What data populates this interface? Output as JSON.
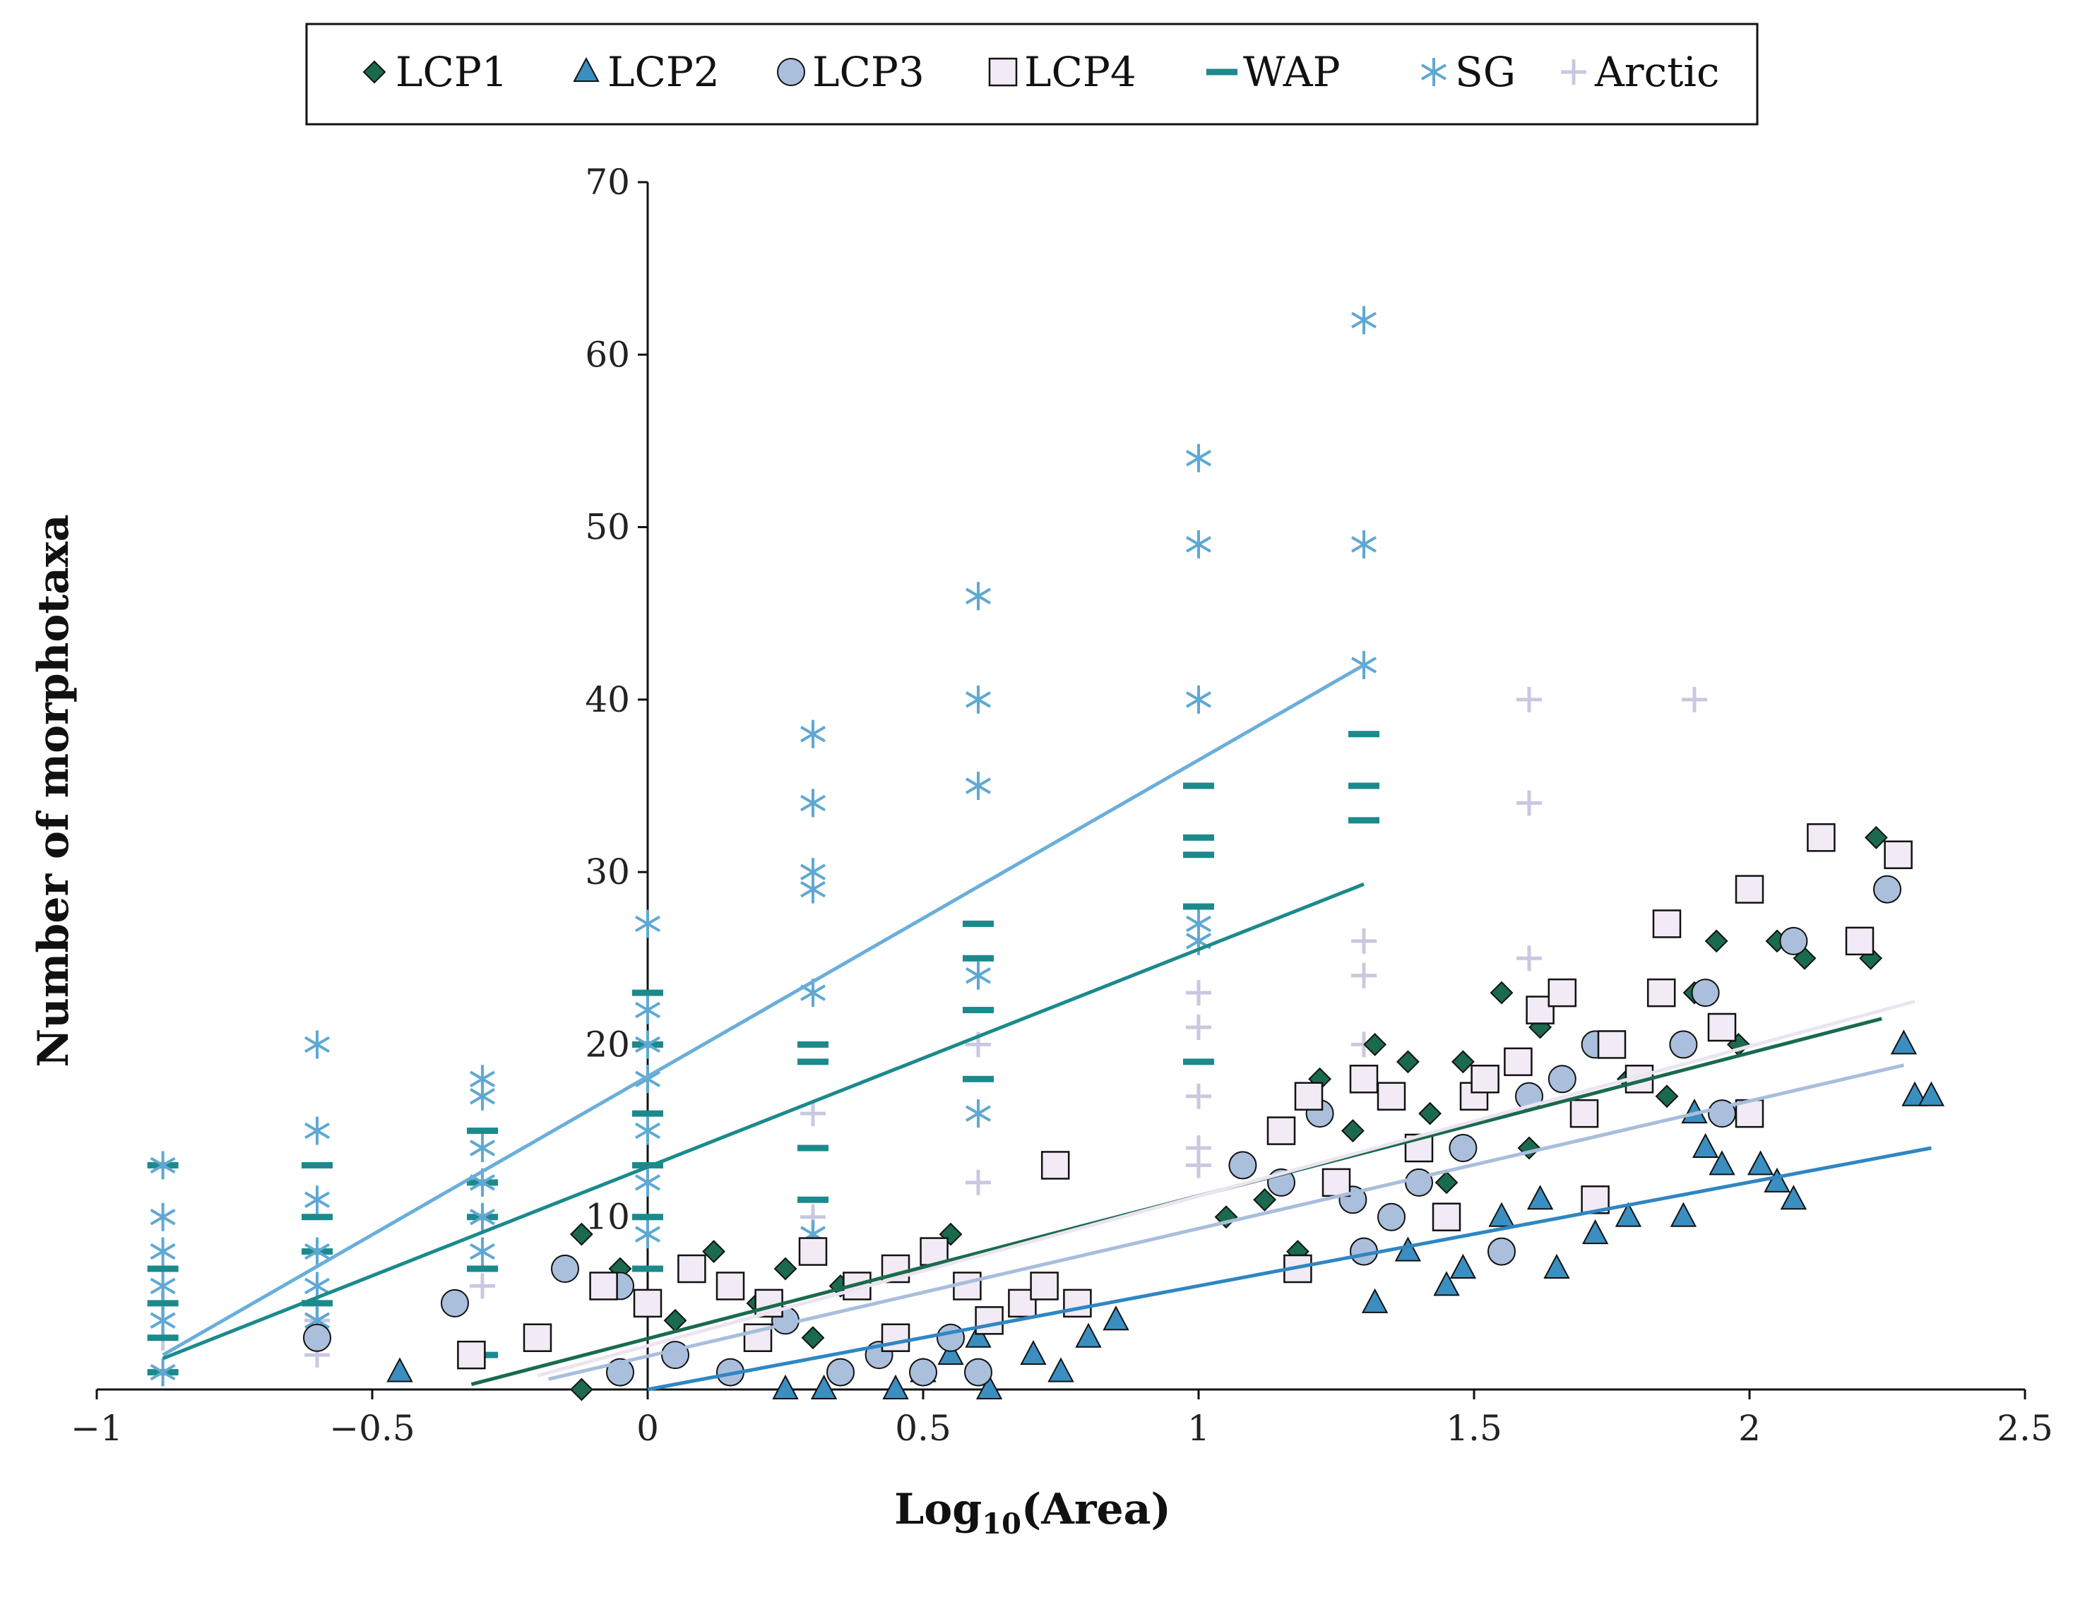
{
  "chart_data": {
    "type": "scatter",
    "title": "",
    "xlabel_main": "Log",
    "xlabel_sub": "10",
    "xlabel_tail": "(Area)",
    "xlabel": "Log10(Area)",
    "ylabel": "Number of morphotaxa",
    "xlim": [
      -1,
      2.5
    ],
    "ylim": [
      0,
      70
    ],
    "x_ticks": [
      -1,
      -0.5,
      0,
      0.5,
      1,
      1.5,
      2,
      2.5
    ],
    "x_tick_labels": [
      "−1",
      "−0.5",
      "0",
      "0.5",
      "1",
      "1.5",
      "2",
      "2.5"
    ],
    "y_ticks": [
      10,
      20,
      30,
      40,
      50,
      60,
      70
    ],
    "y_tick_labels": [
      "10",
      "20",
      "30",
      "40",
      "50",
      "60",
      "70"
    ],
    "grid": false,
    "legend_position": "top",
    "series": [
      {
        "name": "LCP1",
        "marker": "diamond",
        "color": "#1a6b4e",
        "trend": {
          "x": [
            -0.32,
            2.24
          ],
          "y": [
            0.3,
            21.5
          ]
        },
        "points": [
          [
            -0.12,
            9
          ],
          [
            -0.05,
            7
          ],
          [
            0.12,
            8
          ],
          [
            0.25,
            7
          ],
          [
            0.35,
            6
          ],
          [
            0.45,
            7
          ],
          [
            0.55,
            9
          ],
          [
            0.2,
            5
          ],
          [
            -0.12,
            0
          ],
          [
            0.05,
            4
          ],
          [
            0.3,
            3
          ],
          [
            1.05,
            10
          ],
          [
            1.12,
            11
          ],
          [
            1.18,
            8
          ],
          [
            1.22,
            18
          ],
          [
            1.28,
            15
          ],
          [
            1.32,
            20
          ],
          [
            1.38,
            19
          ],
          [
            1.42,
            16
          ],
          [
            1.48,
            19
          ],
          [
            1.55,
            23
          ],
          [
            1.62,
            21
          ],
          [
            1.7,
            16
          ],
          [
            1.78,
            18
          ],
          [
            1.85,
            17
          ],
          [
            1.9,
            23
          ],
          [
            1.94,
            26
          ],
          [
            1.98,
            20
          ],
          [
            2.05,
            26
          ],
          [
            2.1,
            25
          ],
          [
            2.23,
            32
          ],
          [
            2.22,
            25
          ],
          [
            1.45,
            12
          ],
          [
            1.6,
            14
          ]
        ]
      },
      {
        "name": "LCP2",
        "marker": "triangle",
        "color": "#3a8fc0",
        "trend": {
          "x": [
            0.0,
            2.33
          ],
          "y": [
            0.0,
            14.0
          ]
        },
        "points": [
          [
            -0.45,
            1
          ],
          [
            0.25,
            0
          ],
          [
            0.32,
            0
          ],
          [
            0.45,
            0
          ],
          [
            0.5,
            1
          ],
          [
            0.62,
            0
          ],
          [
            0.7,
            2
          ],
          [
            0.75,
            1
          ],
          [
            0.8,
            3
          ],
          [
            0.85,
            4
          ],
          [
            0.6,
            3
          ],
          [
            0.55,
            2
          ],
          [
            1.32,
            5
          ],
          [
            1.38,
            8
          ],
          [
            1.45,
            6
          ],
          [
            1.48,
            7
          ],
          [
            1.55,
            10
          ],
          [
            1.62,
            11
          ],
          [
            1.65,
            7
          ],
          [
            1.72,
            9
          ],
          [
            1.78,
            10
          ],
          [
            1.88,
            10
          ],
          [
            1.92,
            14
          ],
          [
            1.95,
            13
          ],
          [
            2.02,
            13
          ],
          [
            2.05,
            12
          ],
          [
            2.08,
            11
          ],
          [
            2.28,
            20
          ],
          [
            2.3,
            17
          ],
          [
            2.33,
            17
          ],
          [
            1.9,
            16
          ]
        ]
      },
      {
        "name": "LCP3",
        "marker": "circle",
        "color": "#aabfdc",
        "trend": {
          "x": [
            -0.18,
            2.28
          ],
          "y": [
            0.6,
            18.8
          ]
        },
        "points": [
          [
            -0.6,
            3
          ],
          [
            -0.35,
            5
          ],
          [
            -0.15,
            7
          ],
          [
            -0.05,
            6
          ],
          [
            0.05,
            2
          ],
          [
            0.15,
            1
          ],
          [
            0.25,
            4
          ],
          [
            0.35,
            1
          ],
          [
            0.42,
            2
          ],
          [
            0.5,
            1
          ],
          [
            0.55,
            3
          ],
          [
            0.6,
            1
          ],
          [
            -0.05,
            1
          ],
          [
            1.08,
            13
          ],
          [
            1.15,
            12
          ],
          [
            1.22,
            16
          ],
          [
            1.28,
            11
          ],
          [
            1.35,
            10
          ],
          [
            1.4,
            12
          ],
          [
            1.48,
            14
          ],
          [
            1.55,
            8
          ],
          [
            1.6,
            17
          ],
          [
            1.66,
            18
          ],
          [
            1.72,
            20
          ],
          [
            1.8,
            18
          ],
          [
            1.88,
            20
          ],
          [
            1.92,
            23
          ],
          [
            1.95,
            21
          ],
          [
            1.95,
            16
          ],
          [
            2.08,
            26
          ],
          [
            2.25,
            29
          ],
          [
            1.3,
            8
          ]
        ]
      },
      {
        "name": "LCP4",
        "marker": "square",
        "color": "#f2eaf4",
        "trend": {
          "x": [
            -0.2,
            2.3
          ],
          "y": [
            0.8,
            22.5
          ]
        },
        "points": [
          [
            -0.32,
            2
          ],
          [
            -0.2,
            3
          ],
          [
            -0.08,
            6
          ],
          [
            0.0,
            5
          ],
          [
            0.08,
            7
          ],
          [
            0.15,
            6
          ],
          [
            0.22,
            5
          ],
          [
            0.3,
            8
          ],
          [
            0.38,
            6
          ],
          [
            0.45,
            7
          ],
          [
            0.52,
            8
          ],
          [
            0.58,
            6
          ],
          [
            0.62,
            4
          ],
          [
            0.68,
            5
          ],
          [
            0.72,
            6
          ],
          [
            0.78,
            5
          ],
          [
            0.74,
            13
          ],
          [
            0.2,
            3
          ],
          [
            0.45,
            3
          ],
          [
            1.15,
            15
          ],
          [
            1.2,
            17
          ],
          [
            1.25,
            12
          ],
          [
            1.3,
            18
          ],
          [
            1.35,
            17
          ],
          [
            1.4,
            14
          ],
          [
            1.45,
            10
          ],
          [
            1.5,
            17
          ],
          [
            1.52,
            18
          ],
          [
            1.58,
            19
          ],
          [
            1.62,
            22
          ],
          [
            1.66,
            23
          ],
          [
            1.7,
            16
          ],
          [
            1.75,
            20
          ],
          [
            1.8,
            18
          ],
          [
            1.84,
            23
          ],
          [
            1.85,
            27
          ],
          [
            1.95,
            21
          ],
          [
            2.0,
            29
          ],
          [
            2.0,
            16
          ],
          [
            2.13,
            32
          ],
          [
            2.2,
            26
          ],
          [
            2.27,
            31
          ],
          [
            1.18,
            7
          ],
          [
            1.72,
            11
          ]
        ]
      },
      {
        "name": "WAP",
        "marker": "dash",
        "color": "#1c8a8c",
        "trend": {
          "x": [
            -0.88,
            1.3
          ],
          "y": [
            1.8,
            29.3
          ]
        },
        "points": [
          [
            -0.88,
            13
          ],
          [
            -0.88,
            7
          ],
          [
            -0.88,
            5
          ],
          [
            -0.88,
            3
          ],
          [
            -0.88,
            1
          ],
          [
            -0.6,
            13
          ],
          [
            -0.6,
            10
          ],
          [
            -0.6,
            8
          ],
          [
            -0.6,
            5
          ],
          [
            -0.3,
            15
          ],
          [
            -0.3,
            12
          ],
          [
            -0.3,
            10
          ],
          [
            -0.3,
            7
          ],
          [
            -0.3,
            2
          ],
          [
            0,
            23
          ],
          [
            0,
            20
          ],
          [
            0,
            16
          ],
          [
            0,
            13
          ],
          [
            0,
            10
          ],
          [
            0,
            7
          ],
          [
            0.3,
            20
          ],
          [
            0.3,
            19
          ],
          [
            0.3,
            14
          ],
          [
            0.3,
            11
          ],
          [
            0.6,
            27
          ],
          [
            0.6,
            25
          ],
          [
            0.6,
            22
          ],
          [
            0.6,
            18
          ],
          [
            1,
            35
          ],
          [
            1,
            32
          ],
          [
            1,
            31
          ],
          [
            1,
            28
          ],
          [
            1,
            19
          ],
          [
            1.3,
            38
          ],
          [
            1.3,
            35
          ],
          [
            1.3,
            33
          ]
        ]
      },
      {
        "name": "SG",
        "marker": "asterisk",
        "color": "#5fa8d3",
        "trend": {
          "x": [
            -0.88,
            1.3
          ],
          "y": [
            2.0,
            42.0
          ]
        },
        "points": [
          [
            -0.88,
            13
          ],
          [
            -0.88,
            10
          ],
          [
            -0.88,
            8
          ],
          [
            -0.88,
            6
          ],
          [
            -0.88,
            4
          ],
          [
            -0.88,
            1
          ],
          [
            -0.6,
            20
          ],
          [
            -0.6,
            15
          ],
          [
            -0.6,
            11
          ],
          [
            -0.6,
            8
          ],
          [
            -0.6,
            6
          ],
          [
            -0.6,
            4
          ],
          [
            -0.3,
            18
          ],
          [
            -0.3,
            17
          ],
          [
            -0.3,
            14
          ],
          [
            -0.3,
            12
          ],
          [
            -0.3,
            10
          ],
          [
            -0.3,
            8
          ],
          [
            0,
            27
          ],
          [
            0,
            22
          ],
          [
            0,
            20
          ],
          [
            0,
            18
          ],
          [
            0,
            15
          ],
          [
            0,
            12
          ],
          [
            0,
            9
          ],
          [
            0.3,
            38
          ],
          [
            0.3,
            34
          ],
          [
            0.3,
            30
          ],
          [
            0.3,
            29
          ],
          [
            0.3,
            23
          ],
          [
            0.3,
            9
          ],
          [
            0.6,
            46
          ],
          [
            0.6,
            40
          ],
          [
            0.6,
            35
          ],
          [
            0.6,
            24
          ],
          [
            0.6,
            16
          ],
          [
            1,
            54
          ],
          [
            1,
            49
          ],
          [
            1,
            40
          ],
          [
            1,
            27
          ],
          [
            1,
            26
          ],
          [
            1.3,
            62
          ],
          [
            1.3,
            49
          ],
          [
            1.3,
            42
          ]
        ]
      },
      {
        "name": "Arctic",
        "marker": "plus",
        "color": "#c8c8e0",
        "trend": null,
        "points": [
          [
            -0.88,
            5
          ],
          [
            -0.88,
            3
          ],
          [
            -0.6,
            4
          ],
          [
            -0.6,
            2
          ],
          [
            -0.3,
            6
          ],
          [
            0,
            5
          ],
          [
            0.3,
            16
          ],
          [
            0.3,
            10
          ],
          [
            0.6,
            20
          ],
          [
            0.6,
            12
          ],
          [
            1,
            23
          ],
          [
            1,
            21
          ],
          [
            1,
            17
          ],
          [
            1,
            14
          ],
          [
            1,
            13
          ],
          [
            1.3,
            26
          ],
          [
            1.3,
            24
          ],
          [
            1.3,
            20
          ],
          [
            1.6,
            40
          ],
          [
            1.6,
            34
          ],
          [
            1.6,
            25
          ],
          [
            1.9,
            40
          ]
        ]
      }
    ]
  }
}
